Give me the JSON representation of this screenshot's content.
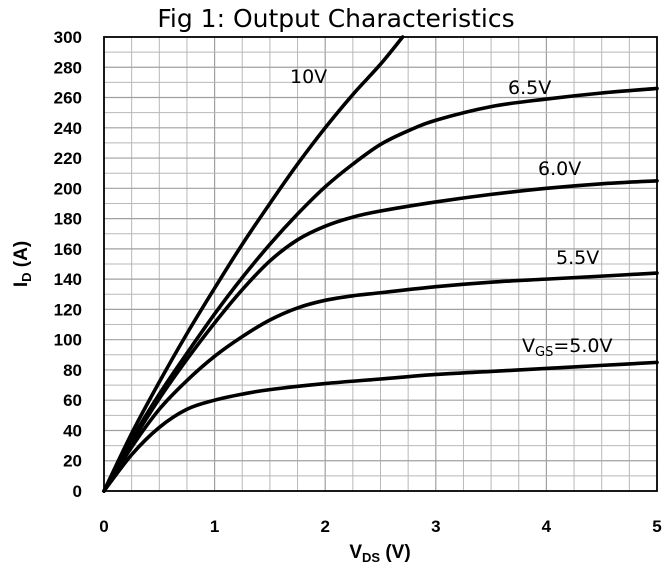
{
  "chart_data": {
    "type": "line",
    "title": "Fig 1: Output Characteristics",
    "xlabel": {
      "main": "V",
      "sub": "DS",
      "tail": " (V)"
    },
    "ylabel": {
      "main": "I",
      "sub": "D",
      "tail": " (A)"
    },
    "xlim": [
      0,
      5
    ],
    "ylim": [
      0,
      300
    ],
    "x_ticks": [
      0,
      1,
      2,
      3,
      4,
      5
    ],
    "y_ticks": [
      0,
      20,
      40,
      60,
      80,
      100,
      120,
      140,
      160,
      180,
      200,
      220,
      240,
      260,
      280,
      300
    ],
    "x_minor_step": 0.25,
    "y_minor_step": 10,
    "grid": true,
    "series": [
      {
        "name": "10V",
        "label_parts": {
          "main": "10V",
          "sub": "",
          "tail": ""
        },
        "x": [
          0,
          0.25,
          0.5,
          0.75,
          1.0,
          1.25,
          1.5,
          1.75,
          2.0,
          2.25,
          2.5,
          2.7
        ],
        "y": [
          0,
          38,
          72,
          104,
          134,
          163,
          190,
          216,
          240,
          262,
          282,
          300
        ]
      },
      {
        "name": "6.5V",
        "label_parts": {
          "main": "6.5V",
          "sub": "",
          "tail": ""
        },
        "x": [
          0,
          0.25,
          0.5,
          0.75,
          1.0,
          1.25,
          1.5,
          1.75,
          2.0,
          2.25,
          2.5,
          2.75,
          3.0,
          3.5,
          4.0,
          4.5,
          5.0
        ],
        "y": [
          0,
          34,
          64,
          91,
          117,
          141,
          163,
          183,
          201,
          216,
          229,
          238,
          245,
          254,
          259,
          263,
          266
        ]
      },
      {
        "name": "6.0V",
        "label_parts": {
          "main": "6.0V",
          "sub": "",
          "tail": ""
        },
        "x": [
          0,
          0.25,
          0.5,
          0.75,
          1.0,
          1.25,
          1.5,
          1.75,
          2.0,
          2.25,
          2.5,
          3.0,
          3.5,
          4.0,
          4.5,
          5.0
        ],
        "y": [
          0,
          32,
          61,
          87,
          111,
          133,
          152,
          166,
          175,
          181,
          185,
          191,
          196,
          200,
          203,
          205
        ]
      },
      {
        "name": "5.5V",
        "label_parts": {
          "main": "5.5V",
          "sub": "",
          "tail": ""
        },
        "x": [
          0,
          0.25,
          0.5,
          0.75,
          1.0,
          1.25,
          1.5,
          1.75,
          2.0,
          2.25,
          2.5,
          3.0,
          3.5,
          4.0,
          4.5,
          5.0
        ],
        "y": [
          0,
          29,
          54,
          73,
          89,
          102,
          113,
          121,
          126,
          129,
          131,
          135,
          138,
          140,
          142,
          144
        ]
      },
      {
        "name": "VGS=5.0V",
        "label_parts": {
          "main": "V",
          "sub": "GS",
          "tail": "=5.0V"
        },
        "x": [
          0,
          0.25,
          0.5,
          0.75,
          1.0,
          1.25,
          1.5,
          2.0,
          2.5,
          3.0,
          3.5,
          4.0,
          4.5,
          5.0
        ],
        "y": [
          0,
          24,
          42,
          54,
          60,
          64,
          67,
          71,
          74,
          77,
          79,
          81,
          83,
          85
        ]
      }
    ]
  }
}
